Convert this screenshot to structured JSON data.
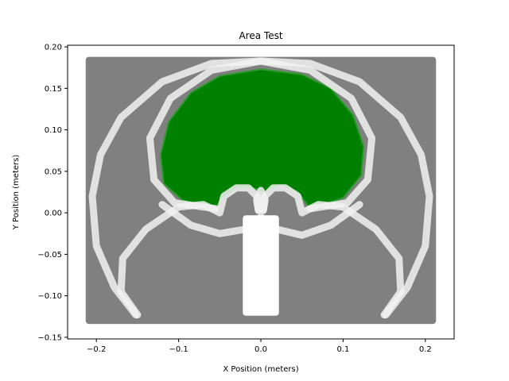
{
  "chart_data": {
    "type": "scatter",
    "title": "Area Test",
    "xlabel": "X Position (meters)",
    "ylabel": "Y Position (meters)",
    "xlim": [
      -0.235,
      0.235
    ],
    "ylim": [
      -0.152,
      0.202
    ],
    "xticks": [
      -0.2,
      -0.1,
      0.0,
      0.1,
      0.2
    ],
    "xtick_labels": [
      "−0.2",
      "−0.1",
      "0.0",
      "0.1",
      "0.2"
    ],
    "yticks": [
      -0.15,
      -0.1,
      -0.05,
      0.0,
      0.05,
      0.1,
      0.15,
      0.2
    ],
    "ytick_labels": [
      "−0.15",
      "−0.10",
      "−0.05",
      "0.00",
      "0.05",
      "0.10",
      "0.15",
      "0.20"
    ],
    "grid": false,
    "legend": "none",
    "series": [
      {
        "role": "workspace-area",
        "color": "#808080",
        "shape": "rectangle",
        "x_range": [
          -0.213,
          0.213
        ],
        "y_range": [
          -0.134,
          0.188
        ]
      },
      {
        "role": "reachable-region",
        "color": "#008000",
        "shape": "heart",
        "outline": [
          [
            -0.055,
            0.005
          ],
          [
            -0.095,
            0.015
          ],
          [
            -0.118,
            0.035
          ],
          [
            -0.122,
            0.07
          ],
          [
            -0.112,
            0.11
          ],
          [
            -0.085,
            0.145
          ],
          [
            -0.05,
            0.165
          ],
          [
            0.0,
            0.173
          ],
          [
            0.05,
            0.167
          ],
          [
            0.085,
            0.15
          ],
          [
            0.112,
            0.118
          ],
          [
            0.125,
            0.08
          ],
          [
            0.122,
            0.045
          ],
          [
            0.1,
            0.018
          ],
          [
            0.06,
            0.005
          ],
          [
            0.045,
            0.025
          ],
          [
            0.025,
            0.034
          ],
          [
            0.005,
            0.025
          ],
          [
            -0.01,
            0.03
          ],
          [
            -0.028,
            0.03
          ],
          [
            -0.048,
            0.018
          ]
        ]
      },
      {
        "role": "arm-trace",
        "color": "#f2f2f2",
        "shape": "curves",
        "paths": [
          [
            [
              -0.152,
              -0.123
            ],
            [
              -0.178,
              -0.09
            ],
            [
              -0.2,
              -0.04
            ],
            [
              -0.205,
              0.02
            ],
            [
              -0.195,
              0.07
            ],
            [
              -0.17,
              0.115
            ],
            [
              -0.12,
              0.158
            ],
            [
              -0.06,
              0.18
            ],
            [
              0.0,
              0.183
            ],
            [
              0.06,
              0.172
            ],
            [
              0.11,
              0.138
            ],
            [
              0.135,
              0.09
            ],
            [
              0.13,
              0.04
            ],
            [
              0.105,
              0.012
            ],
            [
              0.06,
              0.005
            ]
          ],
          [
            [
              0.152,
              -0.123
            ],
            [
              0.178,
              -0.09
            ],
            [
              0.2,
              -0.04
            ],
            [
              0.205,
              0.02
            ],
            [
              0.195,
              0.07
            ],
            [
              0.17,
              0.115
            ],
            [
              0.12,
              0.158
            ],
            [
              0.06,
              0.18
            ],
            [
              0.0,
              0.183
            ],
            [
              -0.06,
              0.172
            ],
            [
              -0.11,
              0.138
            ],
            [
              -0.135,
              0.09
            ],
            [
              -0.13,
              0.04
            ],
            [
              -0.105,
              0.012
            ],
            [
              -0.055,
              0.005
            ]
          ],
          [
            [
              -0.15,
              -0.123
            ],
            [
              -0.17,
              -0.095
            ],
            [
              -0.168,
              -0.055
            ],
            [
              -0.14,
              -0.02
            ],
            [
              -0.1,
              0.007
            ],
            [
              -0.07,
              0.01
            ],
            [
              -0.06,
              0.005
            ],
            [
              -0.05,
              0.0
            ],
            [
              -0.045,
              0.02
            ],
            [
              -0.03,
              0.03
            ],
            [
              -0.015,
              0.03
            ],
            [
              -0.005,
              0.02
            ],
            [
              -0.003,
              0.003
            ]
          ],
          [
            [
              0.15,
              -0.123
            ],
            [
              0.17,
              -0.095
            ],
            [
              0.168,
              -0.055
            ],
            [
              0.14,
              -0.02
            ],
            [
              0.1,
              0.007
            ],
            [
              0.07,
              0.01
            ],
            [
              0.06,
              0.005
            ],
            [
              0.05,
              0.0
            ],
            [
              0.045,
              0.02
            ],
            [
              0.03,
              0.03
            ],
            [
              0.015,
              0.03
            ],
            [
              0.005,
              0.02
            ],
            [
              0.003,
              0.003
            ]
          ],
          [
            [
              -0.12,
              0.01
            ],
            [
              -0.085,
              -0.015
            ],
            [
              -0.05,
              -0.025
            ],
            [
              -0.02,
              -0.02
            ],
            [
              0.0,
              -0.005
            ],
            [
              0.02,
              -0.02
            ],
            [
              0.05,
              -0.027
            ],
            [
              0.085,
              -0.015
            ],
            [
              0.12,
              0.01
            ]
          ],
          [
            [
              -0.003,
              0.003
            ],
            [
              -0.005,
              0.015
            ],
            [
              0.0,
              0.027
            ],
            [
              0.005,
              0.015
            ],
            [
              0.003,
              0.003
            ]
          ]
        ]
      },
      {
        "role": "base",
        "color": "#ffffff",
        "shape": "rectangle",
        "x_range": [
          -0.022,
          0.022
        ],
        "y_range": [
          -0.124,
          -0.003
        ]
      }
    ]
  }
}
